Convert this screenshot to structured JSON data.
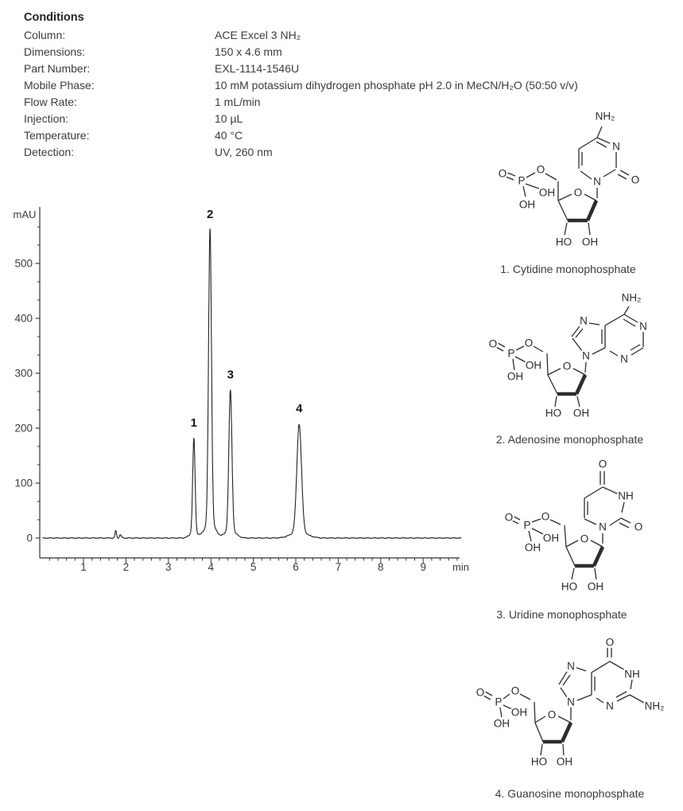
{
  "conditions": {
    "title": "Conditions",
    "rows": [
      {
        "label": "Column:",
        "value": "ACE Excel 3 NH₂"
      },
      {
        "label": "Dimensions:",
        "value": "150 x 4.6 mm"
      },
      {
        "label": "Part Number:",
        "value": "EXL-1114-1546U"
      },
      {
        "label": "Mobile Phase:",
        "value": "10 mM potassium dihydrogen phosphate pH 2.0 in MeCN/H₂O (50:50 v/v)"
      },
      {
        "label": "Flow Rate:",
        "value": "1 mL/min"
      },
      {
        "label": "Injection:",
        "value": "10 µL"
      },
      {
        "label": "Temperature:",
        "value": "40 °C"
      },
      {
        "label": "Detection:",
        "value": "UV, 260 nm"
      }
    ]
  },
  "chart_data": {
    "type": "line",
    "title": "",
    "xlabel": "min",
    "ylabel": "mAU",
    "x_axis": {
      "range": [
        0,
        9.9
      ],
      "major_ticks": [
        1,
        2,
        3,
        4,
        5,
        6,
        7,
        8,
        9
      ],
      "minor_tick_step": 0.2,
      "unit_label": "min"
    },
    "y_axis": {
      "range_display": [
        -36,
        600
      ],
      "major_ticks": [
        0,
        100,
        200,
        300,
        400,
        500
      ],
      "unit_label": "mAU"
    },
    "baseline_mau": 0,
    "injection_disturbance": [
      {
        "rt_min": 1.76,
        "height_mau": 14,
        "sigma_min": 0.016
      },
      {
        "rt_min": 1.87,
        "height_mau": 6,
        "sigma_min": 0.022
      }
    ],
    "peaks": [
      {
        "label": "1",
        "rt_min": 3.6,
        "height_mau": 180,
        "sigma_min": 0.028,
        "compound": "Cytidine monophosphate"
      },
      {
        "label": "2",
        "rt_min": 3.98,
        "height_mau": 560,
        "sigma_min": 0.034,
        "compound": "Adenosine monophosphate"
      },
      {
        "label": "3",
        "rt_min": 4.46,
        "height_mau": 268,
        "sigma_min": 0.036,
        "compound": "Uridine monophosphate"
      },
      {
        "label": "4",
        "rt_min": 6.08,
        "height_mau": 206,
        "sigma_min": 0.055,
        "compound": "Guanosine monophosphate"
      }
    ]
  },
  "structures": [
    {
      "caption": "1. Cytidine monophosphate",
      "drawing": {
        "atoms": [
          [
            "O",
            42,
            88
          ],
          [
            "P",
            66,
            97
          ],
          [
            "O",
            90,
            83
          ],
          [
            "OH",
            98,
            112
          ],
          [
            "OH",
            73,
            127
          ],
          [
            "O",
            137,
            112
          ],
          [
            "HO",
            119,
            174
          ],
          [
            "OH",
            152,
            174
          ],
          [
            "N",
            161,
            98
          ],
          [
            "N",
            185,
            54
          ],
          [
            "O",
            209,
            96
          ],
          [
            "NH₂",
            171,
            16
          ]
        ],
        "bonds": [
          [
            48,
            87,
            58,
            91,
            0
          ],
          [
            46,
            92,
            56,
            96,
            0
          ],
          [
            72,
            93,
            83,
            87,
            0
          ],
          [
            71,
            101,
            88,
            107,
            0
          ],
          [
            68,
            104,
            71,
            117,
            0
          ],
          [
            96,
            88,
            110,
            96,
            0
          ],
          [
            112,
            98,
            112,
            122,
            0
          ],
          [
            112,
            122,
            129,
            114,
            0
          ],
          [
            145,
            114,
            160,
            122,
            0
          ],
          [
            160,
            122,
            149,
            147,
            1
          ],
          [
            149,
            147,
            124,
            147,
            1
          ],
          [
            124,
            147,
            112,
            122,
            0
          ],
          [
            123,
            150,
            120,
            165,
            0
          ],
          [
            150,
            150,
            152,
            165,
            0
          ],
          [
            161,
            119,
            161,
            106,
            0
          ],
          [
            154,
            95,
            140,
            85,
            0
          ],
          [
            138,
            82,
            138,
            57,
            0
          ],
          [
            142,
            78,
            142,
            61,
            0
          ],
          [
            138,
            57,
            161,
            43,
            0
          ],
          [
            161,
            43,
            177,
            50,
            0
          ],
          [
            160,
            48,
            173,
            55,
            0
          ],
          [
            185,
            61,
            185,
            81,
            0
          ],
          [
            184,
            83,
            169,
            92,
            0
          ],
          [
            190,
            84,
            201,
            90,
            0
          ],
          [
            187,
            89,
            198,
            95,
            0
          ],
          [
            161,
            43,
            167,
            29,
            0
          ]
        ]
      }
    },
    {
      "caption": "2. Adenosine monophosphate",
      "drawing": {
        "atoms": [
          [
            "O",
            30,
            70
          ],
          [
            "P",
            53,
            82
          ],
          [
            "O",
            75,
            69
          ],
          [
            "OH",
            81,
            97
          ],
          [
            "OH",
            58,
            111
          ],
          [
            "O",
            123,
            98
          ],
          [
            "HO",
            106,
            157
          ],
          [
            "OH",
            141,
            157
          ],
          [
            "N",
            147,
            85
          ],
          [
            "N",
            144,
            41
          ],
          [
            "N",
            219,
            48
          ],
          [
            "N",
            195,
            89
          ],
          [
            "NH₂",
            204,
            12
          ]
        ],
        "bonds": [
          [
            36,
            69,
            45,
            74,
            0
          ],
          [
            34,
            74,
            43,
            79,
            0
          ],
          [
            59,
            78,
            69,
            73,
            0
          ],
          [
            58,
            86,
            71,
            93,
            0
          ],
          [
            55,
            89,
            57,
            103,
            0
          ],
          [
            81,
            73,
            93,
            80,
            0
          ],
          [
            98,
            82,
            99,
            109,
            0
          ],
          [
            99,
            109,
            115,
            101,
            0
          ],
          [
            131,
            101,
            146,
            109,
            0
          ],
          [
            146,
            109,
            135,
            133,
            1
          ],
          [
            135,
            133,
            111,
            133,
            1
          ],
          [
            111,
            133,
            99,
            109,
            0
          ],
          [
            110,
            136,
            108,
            149,
            0
          ],
          [
            136,
            136,
            139,
            149,
            0
          ],
          [
            146,
            106,
            147,
            93,
            0
          ],
          [
            142,
            79,
            130,
            63,
            0
          ],
          [
            129,
            61,
            139,
            48,
            0
          ],
          [
            134,
            62,
            143,
            51,
            0
          ],
          [
            151,
            44,
            164,
            46,
            0
          ],
          [
            171,
            47,
            171,
            75,
            0
          ],
          [
            167,
            52,
            167,
            70,
            0
          ],
          [
            171,
            75,
            155,
            83,
            0
          ],
          [
            171,
            47,
            195,
            33,
            0
          ],
          [
            195,
            33,
            201,
            23,
            0
          ],
          [
            195,
            33,
            212,
            43,
            0
          ],
          [
            194,
            39,
            209,
            48,
            0
          ],
          [
            219,
            55,
            219,
            74,
            0
          ],
          [
            219,
            75,
            204,
            84,
            0
          ],
          [
            215,
            71,
            203,
            78,
            0
          ],
          [
            187,
            85,
            177,
            79,
            0
          ]
        ]
      }
    },
    {
      "caption": "3. Uridine monophosphate",
      "drawing": {
        "atoms": [
          [
            "O",
            168,
            8
          ],
          [
            "NH",
            197,
            48
          ],
          [
            "O",
            213,
            87
          ],
          [
            "N",
            168,
            87
          ],
          [
            "O",
            50,
            75
          ],
          [
            "P",
            73,
            85
          ],
          [
            "O",
            96,
            74
          ],
          [
            "OH",
            103,
            101
          ],
          [
            "OH",
            80,
            113
          ],
          [
            "O",
            145,
            102
          ],
          [
            "HO",
            126,
            162
          ],
          [
            "OH",
            159,
            162
          ]
        ],
        "bonds": [
          [
            165,
            34,
            165,
            17,
            0
          ],
          [
            170,
            34,
            170,
            17,
            0
          ],
          [
            168,
            37,
            188,
            46,
            0
          ],
          [
            195,
            56,
            192,
            69,
            0
          ],
          [
            191,
            76,
            177,
            85,
            0
          ],
          [
            191,
            76,
            203,
            82,
            0
          ],
          [
            189,
            82,
            201,
            88,
            0
          ],
          [
            160,
            84,
            145,
            77,
            0
          ],
          [
            145,
            76,
            145,
            51,
            0
          ],
          [
            149,
            72,
            149,
            55,
            0
          ],
          [
            145,
            51,
            168,
            37,
            0
          ],
          [
            168,
            95,
            168,
            108,
            0
          ],
          [
            56,
            74,
            64,
            78,
            0
          ],
          [
            54,
            79,
            62,
            83,
            0
          ],
          [
            79,
            81,
            90,
            77,
            0
          ],
          [
            79,
            89,
            93,
            96,
            0
          ],
          [
            75,
            92,
            78,
            105,
            0
          ],
          [
            102,
            78,
            115,
            84,
            0
          ],
          [
            120,
            85,
            122,
            112,
            0
          ],
          [
            122,
            112,
            137,
            104,
            0
          ],
          [
            153,
            104,
            168,
            112,
            0
          ],
          [
            168,
            112,
            157,
            136,
            1
          ],
          [
            157,
            136,
            133,
            136,
            1
          ],
          [
            133,
            136,
            122,
            112,
            0
          ],
          [
            132,
            139,
            129,
            153,
            0
          ],
          [
            158,
            139,
            160,
            153,
            0
          ]
        ]
      }
    },
    {
      "caption": "4. Guanosine monophosphate",
      "drawing": {
        "atoms": [
          [
            "O",
            29,
            80
          ],
          [
            "P",
            52,
            92
          ],
          [
            "O",
            73,
            78
          ],
          [
            "OH",
            78,
            105
          ],
          [
            "OH",
            56,
            119
          ],
          [
            "O",
            119,
            108
          ],
          [
            "HO",
            103,
            167
          ],
          [
            "OH",
            135,
            167
          ],
          [
            "N",
            143,
            92
          ],
          [
            "N",
            143,
            47
          ],
          [
            "O",
            192,
            17
          ],
          [
            "NH",
            220,
            57
          ],
          [
            "NH₂",
            248,
            97
          ],
          [
            "N",
            192,
            97
          ]
        ],
        "bonds": [
          [
            35,
            79,
            44,
            84,
            0
          ],
          [
            33,
            84,
            42,
            89,
            0
          ],
          [
            58,
            88,
            66,
            82,
            0
          ],
          [
            58,
            96,
            69,
            101,
            0
          ],
          [
            54,
            99,
            56,
            111,
            0
          ],
          [
            79,
            82,
            92,
            89,
            0
          ],
          [
            97,
            92,
            98,
            118,
            0
          ],
          [
            98,
            118,
            111,
            110,
            0
          ],
          [
            127,
            110,
            143,
            118,
            0
          ],
          [
            143,
            118,
            132,
            142,
            1
          ],
          [
            132,
            142,
            108,
            142,
            1
          ],
          [
            108,
            142,
            98,
            118,
            0
          ],
          [
            107,
            145,
            105,
            159,
            0
          ],
          [
            133,
            145,
            134,
            159,
            0
          ],
          [
            143,
            115,
            143,
            99,
            0
          ],
          [
            138,
            86,
            130,
            74,
            0
          ],
          [
            128,
            70,
            138,
            54,
            0
          ],
          [
            133,
            71,
            142,
            58,
            0
          ],
          [
            150,
            49,
            162,
            53,
            0
          ],
          [
            169,
            55,
            169,
            83,
            0
          ],
          [
            173,
            60,
            173,
            78,
            0
          ],
          [
            169,
            83,
            151,
            90,
            0
          ],
          [
            169,
            55,
            192,
            41,
            0
          ],
          [
            189,
            36,
            189,
            24,
            0
          ],
          [
            194,
            36,
            194,
            24,
            0
          ],
          [
            192,
            41,
            211,
            52,
            0
          ],
          [
            220,
            64,
            218,
            76,
            0
          ],
          [
            217,
            83,
            235,
            93,
            0
          ],
          [
            217,
            83,
            201,
            91,
            0
          ],
          [
            213,
            79,
            200,
            86,
            0
          ],
          [
            184,
            93,
            175,
            87,
            0
          ]
        ]
      }
    }
  ],
  "colors": {
    "trace": "#222222",
    "axis": "#333333",
    "text": "#3c3c3c",
    "structure": "#2d2d2d",
    "peak_label": "#141414",
    "background": "#ffffff"
  }
}
